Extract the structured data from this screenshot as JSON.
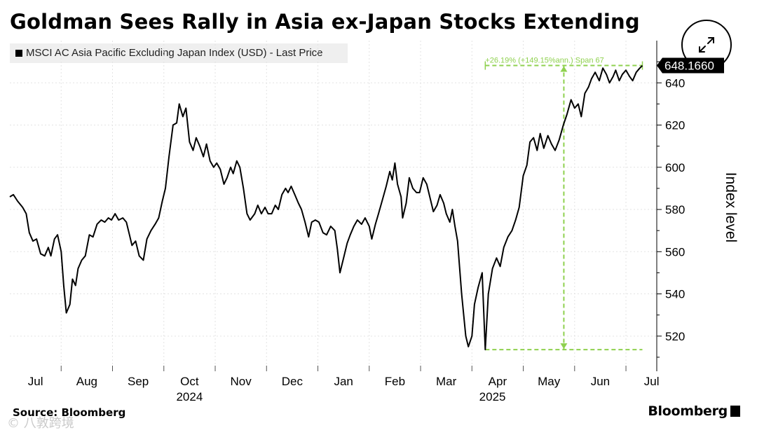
{
  "chart_data": {
    "type": "line",
    "title": "Goldman Sees Rally in Asia ex-Japan Stocks Extending",
    "legend": "MSCI AC Asia Pacific Excluding Japan Index (USD) - Last Price",
    "ylabel": "Index level",
    "xlabel": "",
    "ylim": [
      506,
      660
    ],
    "yticks": [
      "520",
      "540",
      "560",
      "580",
      "600",
      "620",
      "640"
    ],
    "ytick_values": [
      520,
      540,
      560,
      580,
      600,
      620,
      640
    ],
    "x_months": [
      {
        "label": "Jul",
        "month_index": 0.5
      },
      {
        "label": "Aug",
        "month_index": 1.5
      },
      {
        "label": "Sep",
        "month_index": 2.5
      },
      {
        "label": "Oct",
        "month_index": 3.5
      },
      {
        "label": "Nov",
        "month_index": 4.5
      },
      {
        "label": "Dec",
        "month_index": 5.5
      },
      {
        "label": "Jan",
        "month_index": 6.5
      },
      {
        "label": "Feb",
        "month_index": 7.5
      },
      {
        "label": "Mar",
        "month_index": 8.5
      },
      {
        "label": "Apr",
        "month_index": 9.5
      },
      {
        "label": "May",
        "month_index": 10.5
      },
      {
        "label": "Jun",
        "month_index": 11.5
      },
      {
        "label": "Jul",
        "month_index": 12.5
      }
    ],
    "year_labels": [
      {
        "label": "2024",
        "month_index": 3.5
      },
      {
        "label": "2025",
        "month_index": 9.4
      }
    ],
    "last_price_label": "648.1660",
    "annotation": {
      "text": "+26.19% (+149.15%ann.) Span 67",
      "from_month": 9.26,
      "to_month": 12.32,
      "low": 513.6,
      "high": 648.2
    },
    "series": [
      {
        "name": "MSCI AC Asia Pacific Excluding Japan Index (USD) - Last Price",
        "points": [
          [
            0.0,
            586
          ],
          [
            0.07,
            587
          ],
          [
            0.15,
            584
          ],
          [
            0.25,
            581
          ],
          [
            0.32,
            578
          ],
          [
            0.38,
            569
          ],
          [
            0.45,
            565
          ],
          [
            0.52,
            566
          ],
          [
            0.6,
            559
          ],
          [
            0.68,
            558
          ],
          [
            0.75,
            562
          ],
          [
            0.8,
            558
          ],
          [
            0.87,
            566
          ],
          [
            0.93,
            568
          ],
          [
            1.0,
            560
          ],
          [
            1.05,
            544
          ],
          [
            1.1,
            531
          ],
          [
            1.17,
            535
          ],
          [
            1.22,
            547
          ],
          [
            1.28,
            544
          ],
          [
            1.33,
            552
          ],
          [
            1.4,
            556
          ],
          [
            1.47,
            558
          ],
          [
            1.55,
            568
          ],
          [
            1.62,
            567
          ],
          [
            1.7,
            573
          ],
          [
            1.78,
            575
          ],
          [
            1.85,
            574
          ],
          [
            1.92,
            576
          ],
          [
            1.98,
            575
          ],
          [
            2.05,
            578
          ],
          [
            2.12,
            575
          ],
          [
            2.2,
            576
          ],
          [
            2.27,
            574
          ],
          [
            2.33,
            568
          ],
          [
            2.38,
            563
          ],
          [
            2.45,
            565
          ],
          [
            2.52,
            558
          ],
          [
            2.6,
            556
          ],
          [
            2.67,
            566
          ],
          [
            2.75,
            570
          ],
          [
            2.83,
            573
          ],
          [
            2.9,
            576
          ],
          [
            2.97,
            584
          ],
          [
            3.03,
            590
          ],
          [
            3.1,
            605
          ],
          [
            3.18,
            620
          ],
          [
            3.25,
            621
          ],
          [
            3.3,
            630
          ],
          [
            3.37,
            624
          ],
          [
            3.43,
            628
          ],
          [
            3.5,
            612
          ],
          [
            3.57,
            608
          ],
          [
            3.63,
            614
          ],
          [
            3.7,
            610
          ],
          [
            3.77,
            605
          ],
          [
            3.83,
            611
          ],
          [
            3.9,
            603
          ],
          [
            3.97,
            600
          ],
          [
            4.03,
            602
          ],
          [
            4.1,
            599
          ],
          [
            4.17,
            592
          ],
          [
            4.23,
            595
          ],
          [
            4.3,
            600
          ],
          [
            4.35,
            597
          ],
          [
            4.42,
            603
          ],
          [
            4.48,
            600
          ],
          [
            4.55,
            590
          ],
          [
            4.62,
            578
          ],
          [
            4.68,
            575
          ],
          [
            4.77,
            578
          ],
          [
            4.83,
            582
          ],
          [
            4.9,
            578
          ],
          [
            4.97,
            581
          ],
          [
            5.03,
            578
          ],
          [
            5.1,
            578
          ],
          [
            5.17,
            582
          ],
          [
            5.23,
            580
          ],
          [
            5.3,
            587
          ],
          [
            5.37,
            590
          ],
          [
            5.42,
            588
          ],
          [
            5.48,
            591
          ],
          [
            5.55,
            587
          ],
          [
            5.62,
            583
          ],
          [
            5.68,
            580
          ],
          [
            5.75,
            574
          ],
          [
            5.82,
            567
          ],
          [
            5.88,
            574
          ],
          [
            5.95,
            575
          ],
          [
            6.02,
            574
          ],
          [
            6.1,
            569
          ],
          [
            6.17,
            568
          ],
          [
            6.25,
            572
          ],
          [
            6.33,
            570
          ],
          [
            6.38,
            561
          ],
          [
            6.43,
            550
          ],
          [
            6.5,
            557
          ],
          [
            6.57,
            564
          ],
          [
            6.63,
            568
          ],
          [
            6.7,
            572
          ],
          [
            6.77,
            575
          ],
          [
            6.85,
            573
          ],
          [
            6.92,
            576
          ],
          [
            7.0,
            572
          ],
          [
            7.05,
            566
          ],
          [
            7.12,
            573
          ],
          [
            7.18,
            578
          ],
          [
            7.25,
            584
          ],
          [
            7.33,
            591
          ],
          [
            7.4,
            598
          ],
          [
            7.45,
            594
          ],
          [
            7.5,
            602
          ],
          [
            7.55,
            592
          ],
          [
            7.62,
            586
          ],
          [
            7.65,
            576
          ],
          [
            7.72,
            583
          ],
          [
            7.78,
            595
          ],
          [
            7.85,
            590
          ],
          [
            7.92,
            588
          ],
          [
            7.98,
            588
          ],
          [
            8.05,
            595
          ],
          [
            8.12,
            592
          ],
          [
            8.18,
            586
          ],
          [
            8.25,
            579
          ],
          [
            8.32,
            582
          ],
          [
            8.38,
            587
          ],
          [
            8.45,
            583
          ],
          [
            8.5,
            578
          ],
          [
            8.57,
            574
          ],
          [
            8.62,
            580
          ],
          [
            8.67,
            572
          ],
          [
            8.72,
            565
          ],
          [
            8.8,
            540
          ],
          [
            8.88,
            520
          ],
          [
            8.93,
            515
          ],
          [
            9.0,
            520
          ],
          [
            9.05,
            535
          ],
          [
            9.12,
            543
          ],
          [
            9.2,
            550
          ],
          [
            9.26,
            513.6
          ],
          [
            9.32,
            540
          ],
          [
            9.4,
            552
          ],
          [
            9.48,
            557
          ],
          [
            9.55,
            553
          ],
          [
            9.62,
            562
          ],
          [
            9.7,
            567
          ],
          [
            9.78,
            570
          ],
          [
            9.85,
            575
          ],
          [
            9.92,
            581
          ],
          [
            10.0,
            596
          ],
          [
            10.07,
            601
          ],
          [
            10.13,
            612
          ],
          [
            10.2,
            614
          ],
          [
            10.27,
            608
          ],
          [
            10.33,
            616
          ],
          [
            10.4,
            609
          ],
          [
            10.48,
            615
          ],
          [
            10.55,
            611
          ],
          [
            10.62,
            608
          ],
          [
            10.7,
            613
          ],
          [
            10.78,
            620
          ],
          [
            10.85,
            625
          ],
          [
            10.93,
            632
          ],
          [
            11.0,
            628
          ],
          [
            11.07,
            630
          ],
          [
            11.13,
            624
          ],
          [
            11.2,
            635
          ],
          [
            11.27,
            638
          ],
          [
            11.33,
            642
          ],
          [
            11.4,
            645
          ],
          [
            11.48,
            641
          ],
          [
            11.55,
            647
          ],
          [
            11.62,
            644
          ],
          [
            11.68,
            640
          ],
          [
            11.75,
            643
          ],
          [
            11.8,
            646
          ],
          [
            11.87,
            641
          ],
          [
            11.93,
            644
          ],
          [
            12.0,
            646
          ],
          [
            12.07,
            643
          ],
          [
            12.13,
            641
          ],
          [
            12.2,
            645
          ],
          [
            12.27,
            647
          ],
          [
            12.32,
            648.2
          ]
        ]
      }
    ]
  },
  "footer": {
    "source": "Source: Bloomberg",
    "brand": "Bloomberg",
    "watermark": "© 八敦跨境"
  }
}
